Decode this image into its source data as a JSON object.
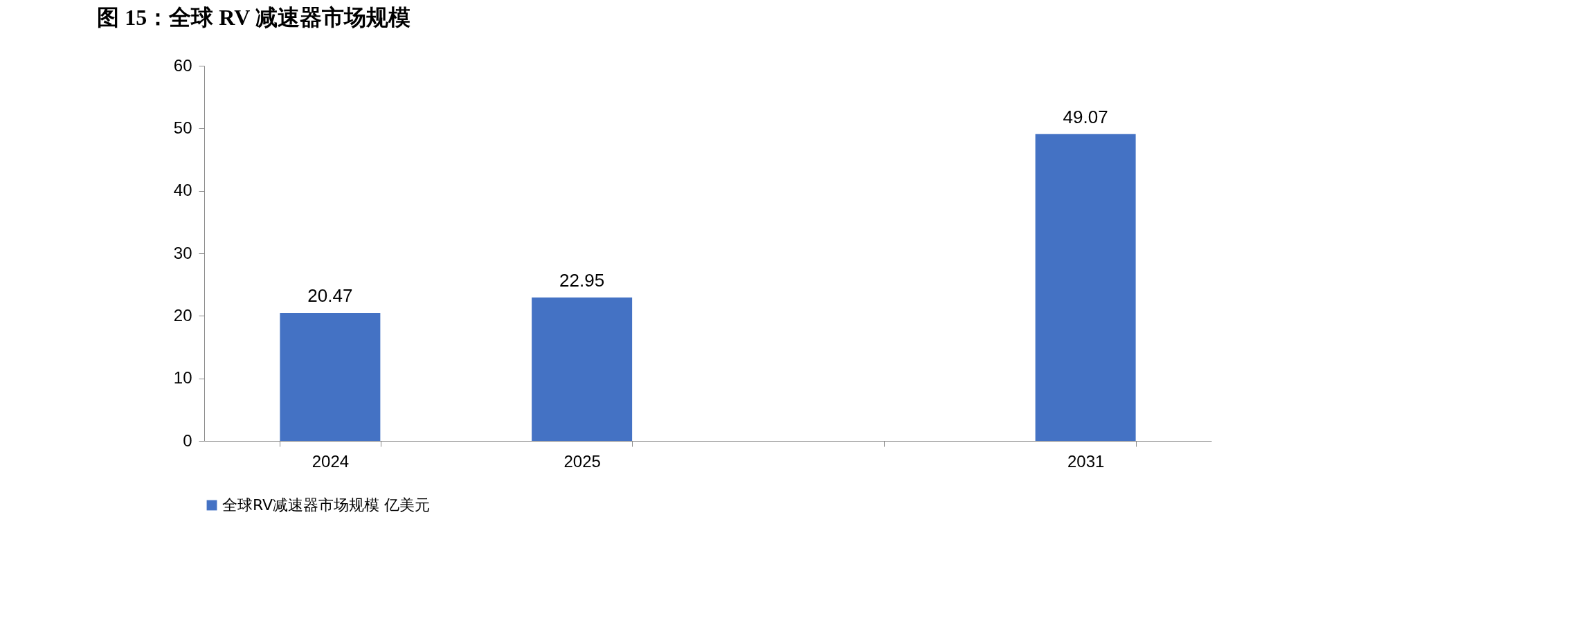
{
  "chart_data": {
    "type": "bar",
    "title": "图 15：全球 RV 减速器市场规模",
    "categories": [
      "2024",
      "2025",
      null,
      "2031"
    ],
    "series": [
      {
        "name": "全球RV减速器市场规模 亿美元",
        "color": "#4472c4",
        "values": [
          20.47,
          22.95,
          null,
          49.07
        ]
      }
    ],
    "ylim": [
      0,
      60
    ],
    "yticks": [
      0,
      10,
      20,
      30,
      40,
      50,
      60
    ],
    "grid": false,
    "legend": "bottom",
    "data_labels": true
  }
}
